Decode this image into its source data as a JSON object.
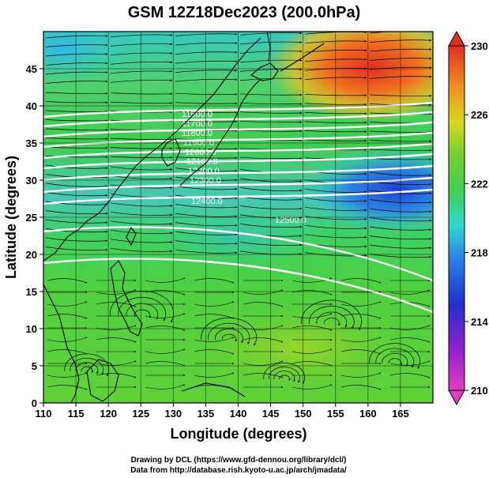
{
  "title": "GSM 12Z18Dec2023 (200.0hPa)",
  "xlabel": "Longitude (degrees)",
  "ylabel": "Latitude  (degrees)",
  "x_ticks": [
    "110",
    "115",
    "120",
    "125",
    "130",
    "135",
    "140",
    "145",
    "150",
    "155",
    "160",
    "165"
  ],
  "y_ticks": [
    "0",
    "5",
    "10",
    "15",
    "20",
    "25",
    "30",
    "35",
    "40",
    "45"
  ],
  "colorbar": {
    "ticks": [
      "210",
      "214",
      "218",
      "222",
      "226",
      "230"
    ],
    "colors": [
      "#e040c0",
      "#b020d0",
      "#3030d0",
      "#2a78e0",
      "#30c8e0",
      "#30d8a0",
      "#40d040",
      "#60d030",
      "#c0d820",
      "#f0d020",
      "#f09020",
      "#e03020"
    ]
  },
  "contour_labels": [
    "11600.0",
    "11700.0",
    "11800.0",
    "11900.0",
    "12000.0",
    "12100.0",
    "12200.0",
    "12300.0",
    "12400.0",
    "12500.0"
  ],
  "credits": {
    "line1": "Drawing by DCL (https://www.gfd-dennou.org/library/dcl/)",
    "line2": "Data from http://database.rish.kyoto-u.ac.jp/arch/jmadata/"
  }
}
